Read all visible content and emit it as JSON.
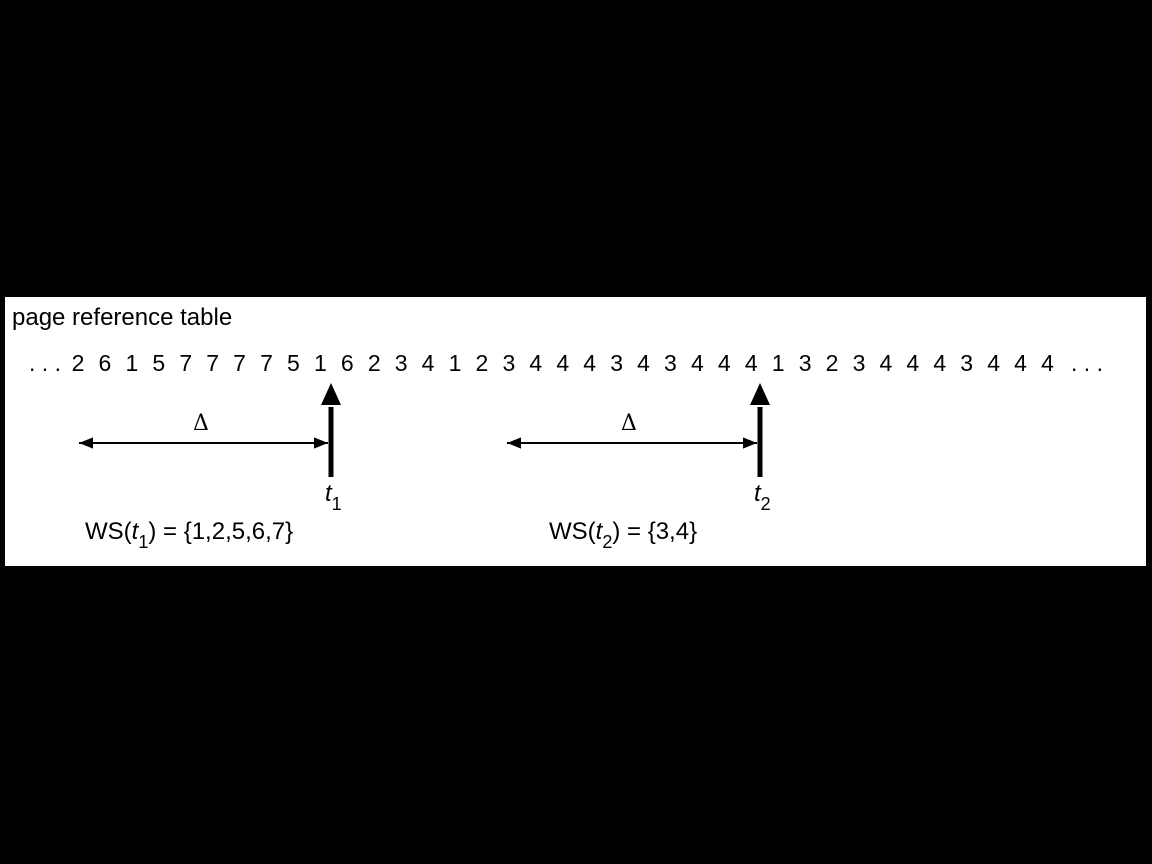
{
  "title": "page reference table",
  "reference_string": {
    "leading_ellipsis": ". . .",
    "trailing_ellipsis": ". . .",
    "pages": [
      "2",
      "6",
      "1",
      "5",
      "7",
      "7",
      "7",
      "7",
      "5",
      "1",
      "6",
      "2",
      "3",
      "4",
      "1",
      "2",
      "3",
      "4",
      "4",
      "4",
      "3",
      "4",
      "3",
      "4",
      "4",
      "4",
      "1",
      "3",
      "2",
      "3",
      "4",
      "4",
      "4",
      "3",
      "4",
      "4",
      "4"
    ]
  },
  "windows": [
    {
      "delta_label": "Δ",
      "time_var": "t",
      "time_sub": "1",
      "ws_prefix": "WS(",
      "ws_var": "t",
      "ws_sub": "1",
      "ws_suffix": ") = {1,2,5,6,7}"
    },
    {
      "delta_label": "Δ",
      "time_var": "t",
      "time_sub": "2",
      "ws_prefix": "WS(",
      "ws_var": "t",
      "ws_sub": "2",
      "ws_suffix": ") = {3,4}"
    }
  ]
}
